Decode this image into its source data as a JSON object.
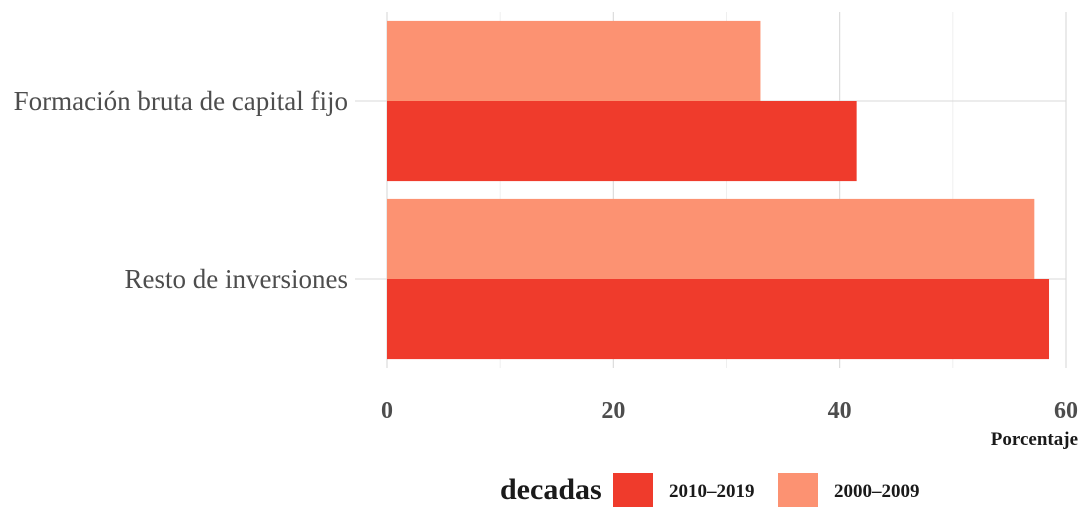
{
  "chart_data": {
    "type": "bar",
    "orientation": "horizontal",
    "categories": [
      "Formación bruta de capital fijo",
      "Resto de inversiones"
    ],
    "series": [
      {
        "name": "2010–2019",
        "color": "#EF3B2C",
        "values": [
          41.5,
          58.5
        ]
      },
      {
        "name": "2000–2009",
        "color": "#FC9272",
        "values": [
          33.0,
          57.2
        ]
      }
    ],
    "xlabel": "Porcentaje",
    "ylabel": "",
    "xlim": [
      0,
      60
    ],
    "xticks": [
      0,
      20,
      40,
      60
    ],
    "grid": true,
    "legend": {
      "title": "decadas",
      "position": "bottom",
      "entries": [
        "2010–2019",
        "2000–2009"
      ]
    }
  }
}
